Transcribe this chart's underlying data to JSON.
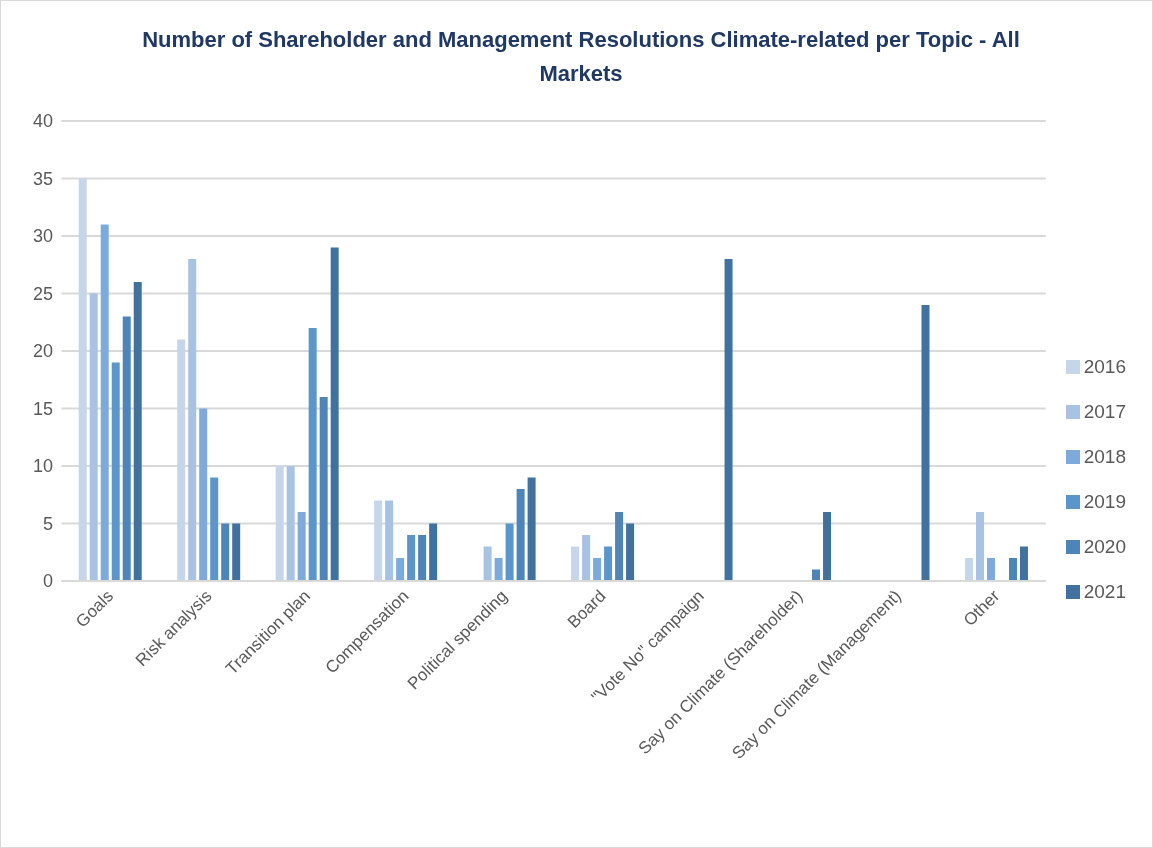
{
  "chart_data": {
    "type": "bar",
    "title": "Number of Shareholder and Management Resolutions Climate-related per Topic - All Markets",
    "categories": [
      "Goals",
      "Risk analysis",
      "Transition plan",
      "Compensation",
      "Political spending",
      "Board",
      "\"Vote No\" campaign",
      "Say on Climate (Shareholder)",
      "Say on Climate (Management)",
      "Other"
    ],
    "series": [
      {
        "name": "2016",
        "color": "#c5d5ea",
        "values": [
          35,
          21,
          10,
          7,
          0,
          3,
          0,
          0,
          0,
          2
        ]
      },
      {
        "name": "2017",
        "color": "#a7c2e3",
        "values": [
          25,
          28,
          10,
          7,
          3,
          4,
          0,
          0,
          0,
          6
        ]
      },
      {
        "name": "2018",
        "color": "#7eaadb",
        "values": [
          31,
          15,
          6,
          2,
          2,
          2,
          0,
          0,
          0,
          2
        ]
      },
      {
        "name": "2019",
        "color": "#5a96cc",
        "values": [
          19,
          9,
          22,
          4,
          5,
          3,
          0,
          0,
          0,
          0
        ]
      },
      {
        "name": "2020",
        "color": "#4e84b7",
        "values": [
          23,
          5,
          16,
          4,
          8,
          6,
          0,
          1,
          0,
          2
        ]
      },
      {
        "name": "2021",
        "color": "#41729f",
        "values": [
          26,
          5,
          29,
          5,
          9,
          5,
          28,
          6,
          24,
          3
        ]
      }
    ],
    "ylim": [
      0,
      40
    ],
    "yticks": [
      0,
      5,
      10,
      15,
      20,
      25,
      30,
      35,
      40
    ],
    "grid": "y",
    "legend": "right"
  }
}
